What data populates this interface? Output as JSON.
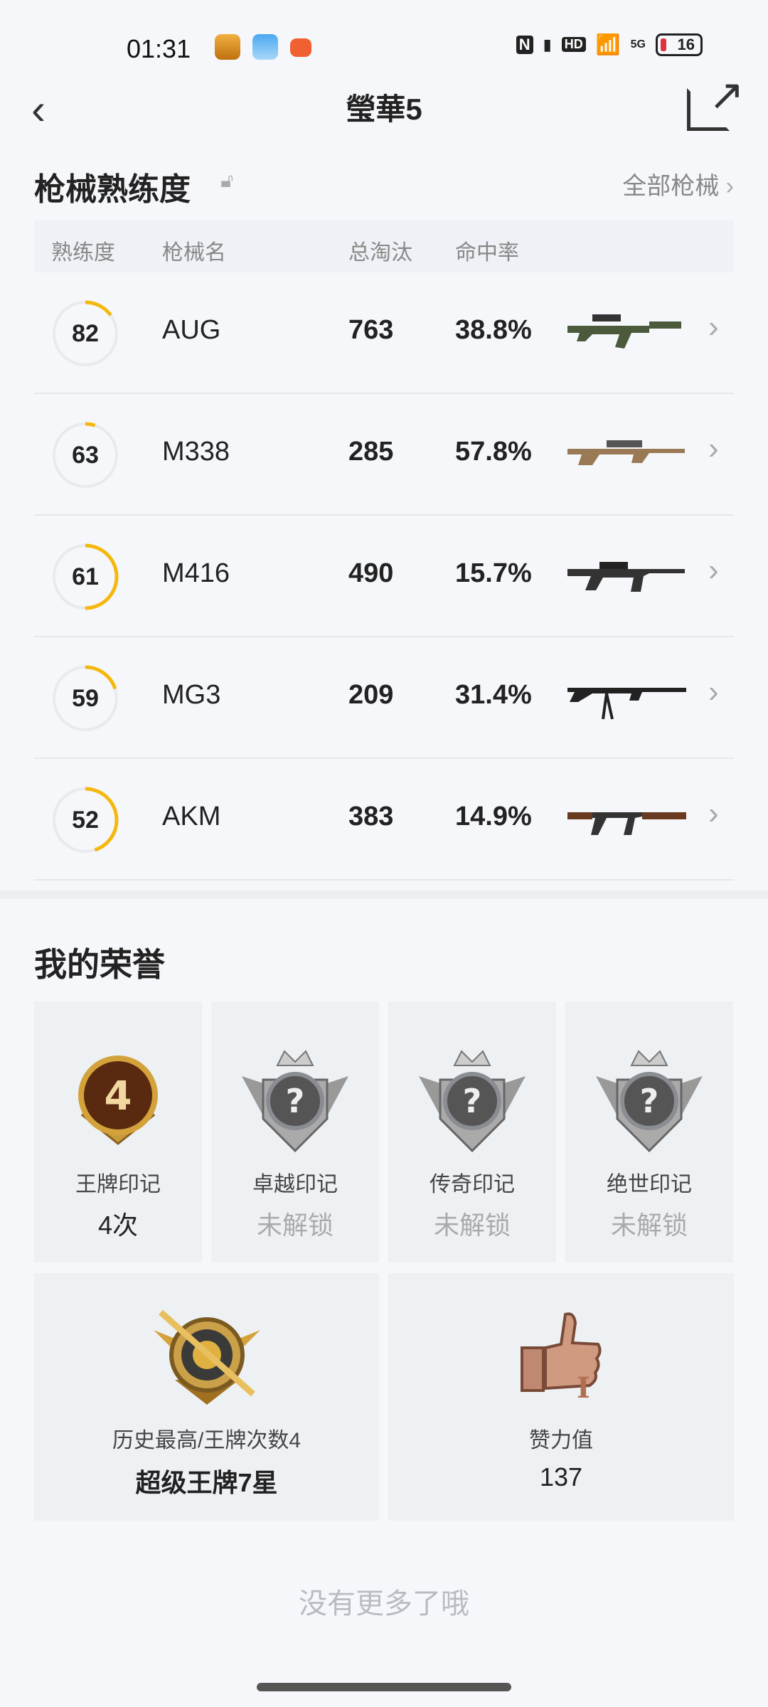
{
  "status_bar": {
    "time": "01:31",
    "battery": "16",
    "network": "5G",
    "hd": "HD",
    "nfc": "N"
  },
  "header": {
    "title": "瑩華5"
  },
  "weapons": {
    "title": "枪械熟练度",
    "all_link": "全部枪械",
    "columns": [
      "熟练度",
      "枪械名",
      "总淘汰",
      "命中率"
    ],
    "rows": [
      {
        "level": "82",
        "name": "AUG",
        "kills": "763",
        "hit_rate": "38.8%",
        "ring_progress": 0.15
      },
      {
        "level": "63",
        "name": "M338",
        "kills": "285",
        "hit_rate": "57.8%",
        "ring_progress": 0.05
      },
      {
        "level": "61",
        "name": "M416",
        "kills": "490",
        "hit_rate": "15.7%",
        "ring_progress": 0.5
      },
      {
        "level": "59",
        "name": "MG3",
        "kills": "209",
        "hit_rate": "31.4%",
        "ring_progress": 0.2
      },
      {
        "level": "52",
        "name": "AKM",
        "kills": "383",
        "hit_rate": "14.9%",
        "ring_progress": 0.45
      }
    ]
  },
  "honors": {
    "title": "我的荣誉",
    "marks": [
      {
        "label": "王牌印记",
        "value": "4次",
        "badge_text": "4",
        "locked": false
      },
      {
        "label": "卓越印记",
        "value": "未解锁",
        "badge_text": "?",
        "locked": true
      },
      {
        "label": "传奇印记",
        "value": "未解锁",
        "badge_text": "?",
        "locked": true
      },
      {
        "label": "绝世印记",
        "value": "未解锁",
        "badge_text": "?",
        "locked": true
      }
    ],
    "highest": {
      "label": "历史最高/王牌次数4",
      "value": "超级王牌7星"
    },
    "likes": {
      "label": "赞力值",
      "value": "137",
      "badge_text": "I"
    }
  },
  "footer": {
    "no_more": "没有更多了哦"
  },
  "colors": {
    "ring": "#f5b80f",
    "ring_track": "#e8eaee",
    "gold": "#d4a23a",
    "silver": "#8a8d92",
    "bronze": "#b9826a"
  }
}
